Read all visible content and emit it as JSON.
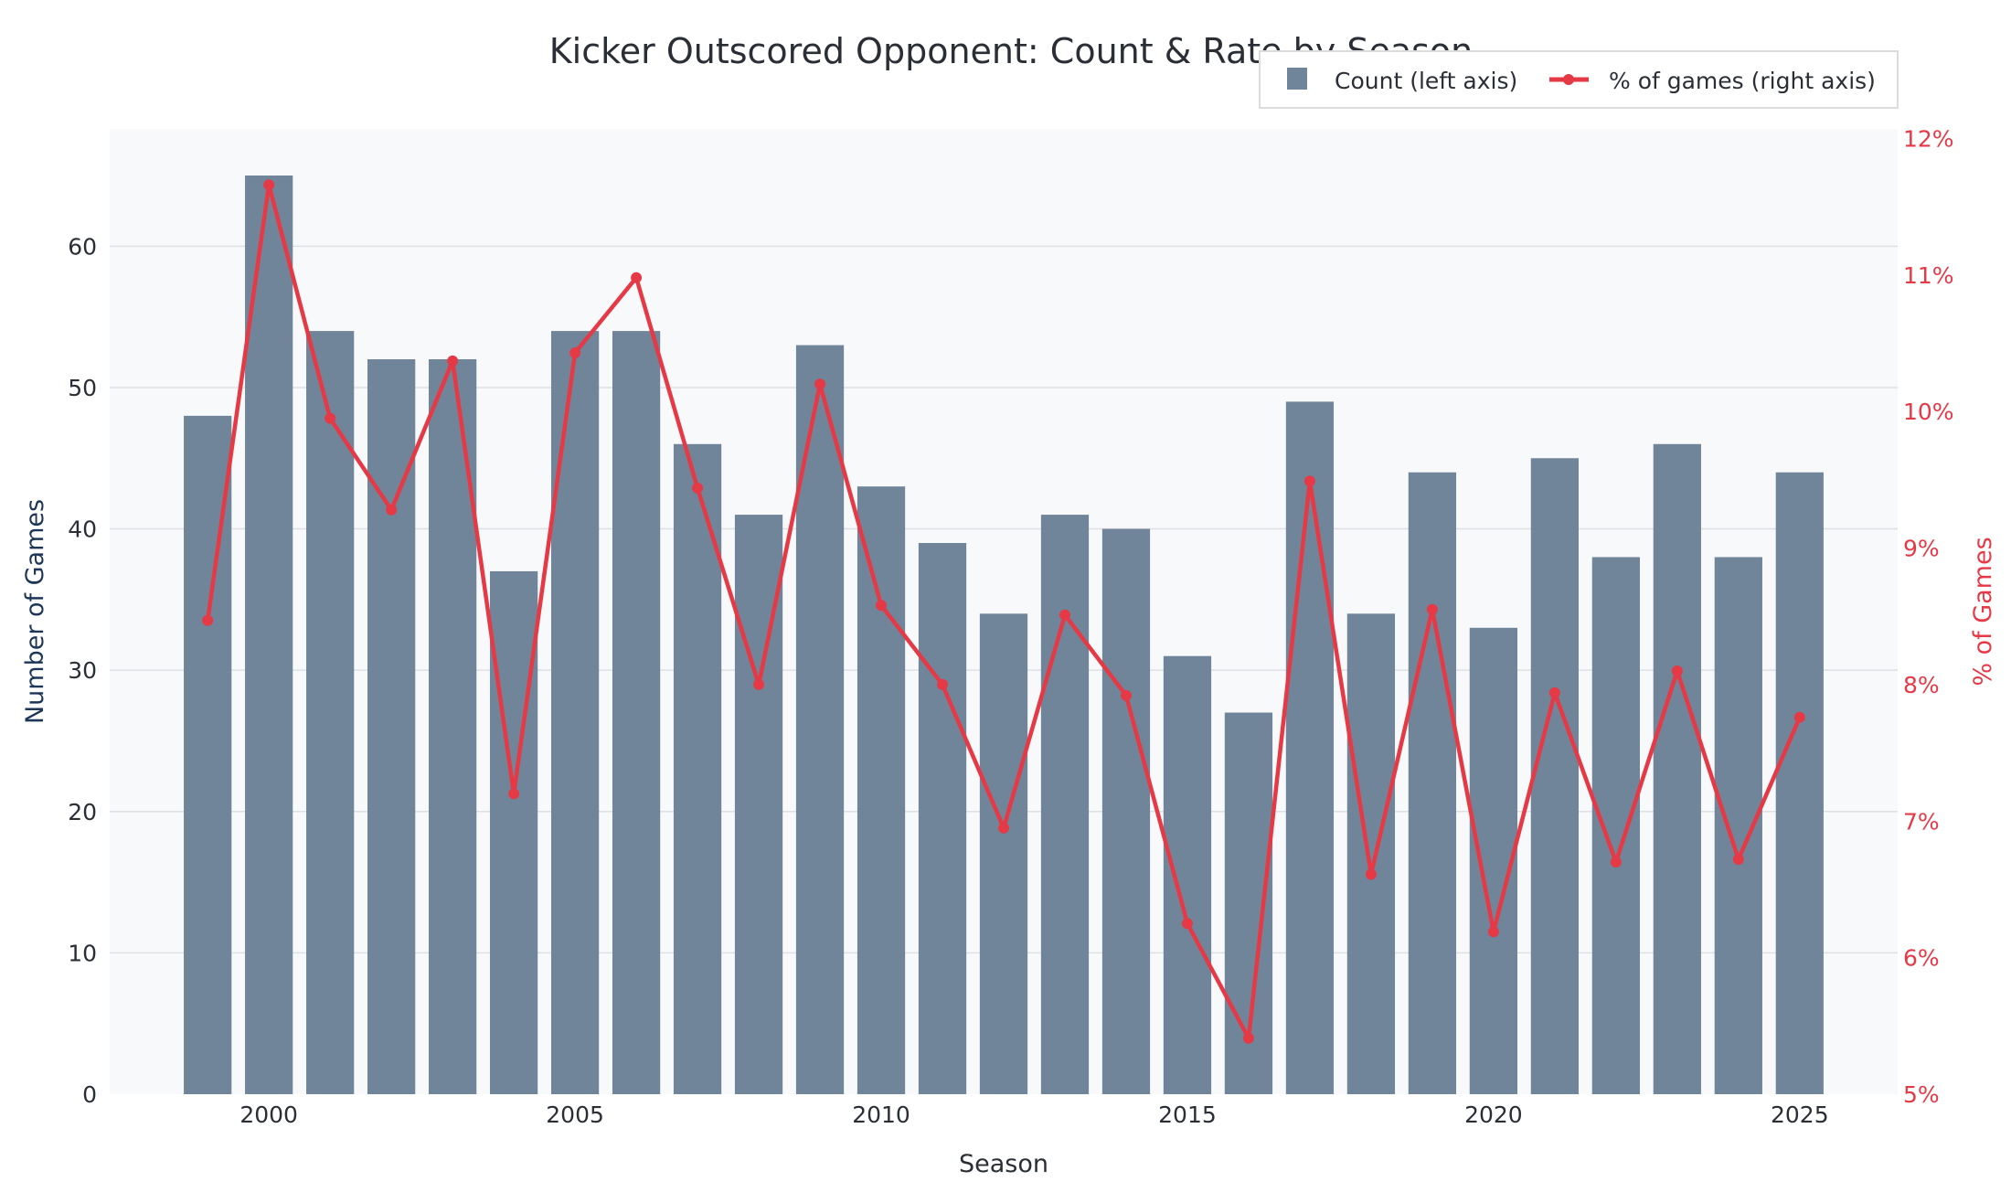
{
  "chart_data": {
    "type": "bar+line",
    "title": "Kicker Outscored Opponent: Count & Rate by Season",
    "xlabel": "Season",
    "ylabel_left": "Number of Games",
    "ylabel_right": "% of Games",
    "x": [
      1999,
      2000,
      2001,
      2002,
      2003,
      2004,
      2005,
      2006,
      2007,
      2008,
      2009,
      2010,
      2011,
      2012,
      2013,
      2014,
      2015,
      2016,
      2017,
      2018,
      2019,
      2020,
      2021,
      2022,
      2023,
      2024,
      2025
    ],
    "series": [
      {
        "name": "Count (left axis)",
        "type": "bar",
        "axis": "left",
        "color": "#708599",
        "values": [
          48,
          65,
          54,
          52,
          52,
          37,
          54,
          54,
          46,
          41,
          53,
          43,
          39,
          34,
          41,
          40,
          31,
          27,
          49,
          34,
          44,
          33,
          45,
          38,
          46,
          38,
          44
        ]
      },
      {
        "name": "% of games (right axis)",
        "type": "line",
        "axis": "right",
        "color": "#e63946",
        "values": [
          8.47,
          11.66,
          9.95,
          9.28,
          10.37,
          7.2,
          10.43,
          10.98,
          9.44,
          8.0,
          10.2,
          8.58,
          8.0,
          6.95,
          8.51,
          7.92,
          6.25,
          5.41,
          9.49,
          6.61,
          8.55,
          6.19,
          7.94,
          6.7,
          8.1,
          6.72,
          7.76
        ]
      }
    ],
    "xlim": [
      1997.4,
      2026.6
    ],
    "xticks": [
      2000,
      2005,
      2010,
      2015,
      2020,
      2025
    ],
    "ylim_left": [
      0,
      68.3
    ],
    "yticks_left": [
      0,
      10,
      20,
      30,
      40,
      50,
      60
    ],
    "ylim_right": [
      5,
      12.07
    ],
    "yticks_right": [
      "5%",
      "6%",
      "7%",
      "8%",
      "9%",
      "10%",
      "11%",
      "12%"
    ],
    "grid": true,
    "legend_placement": "top-right",
    "colors": {
      "title": "#2a2f36",
      "left_axis_label": "#1d3557",
      "right_axis": "#e63946",
      "plot_bg": "#f8f9fb",
      "grid": "#dde0e5"
    }
  }
}
